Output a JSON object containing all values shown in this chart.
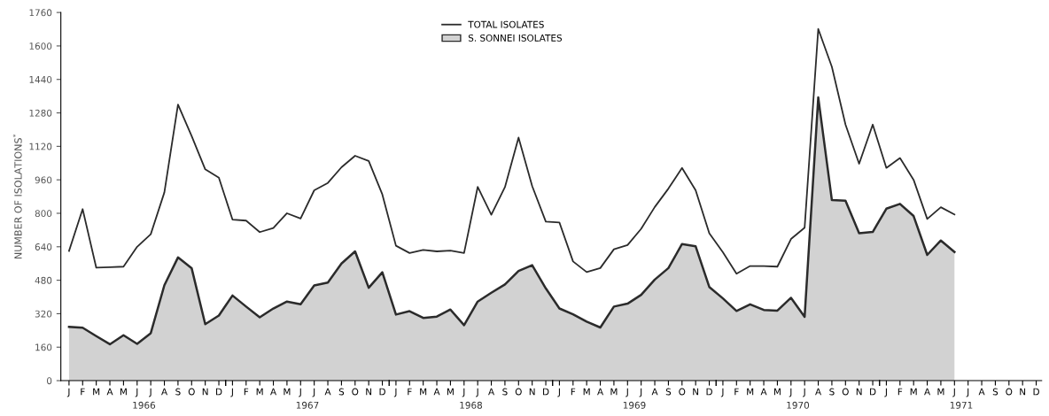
{
  "chart_data": {
    "type": "line",
    "ylabel": "NUMBER OF ISOLATIONS$^{*}$",
    "categories": [
      "J",
      "F",
      "M",
      "A",
      "M",
      "J",
      "J",
      "A",
      "S",
      "O",
      "N",
      "D",
      "J",
      "F",
      "M",
      "A",
      "M",
      "J",
      "J",
      "A",
      "S",
      "O",
      "N",
      "D",
      "J",
      "F",
      "M",
      "A",
      "M",
      "J",
      "J",
      "A",
      "S",
      "O",
      "N",
      "D",
      "J",
      "F",
      "M",
      "A",
      "M",
      "J",
      "J",
      "A",
      "S",
      "O",
      "N",
      "D",
      "J",
      "F",
      "M",
      "A",
      "M",
      "J",
      "J",
      "A",
      "S",
      "O",
      "N",
      "D",
      "J",
      "F",
      "M",
      "A",
      "M",
      "J",
      "J",
      "A",
      "S",
      "O",
      "N",
      "D"
    ],
    "annotations": [
      "1966",
      "1967",
      "1968",
      "1969",
      "1970",
      "1971"
    ],
    "series": [
      {
        "name": "S. SONNEI ISOLATES",
        "type": "area",
        "color": "#d2d2d2",
        "values": [
          257,
          253,
          213,
          174,
          217,
          176,
          227,
          456,
          589,
          538,
          270,
          311,
          407,
          354,
          303,
          345,
          378,
          365,
          455,
          469,
          560,
          618,
          444,
          518,
          316,
          332,
          300,
          306,
          340,
          265,
          378,
          420,
          460,
          524,
          552,
          441,
          345,
          317,
          282,
          254,
          354,
          368,
          410,
          483,
          538,
          653,
          642,
          448,
          393,
          333,
          365,
          338,
          335,
          396,
          305,
          1354,
          863,
          860,
          705,
          711,
          822,
          845,
          787,
          601,
          670,
          615,
          null,
          null,
          null,
          null,
          null,
          null
        ]
      },
      {
        "name": "TOTAL ISOLATES",
        "color": "#2b2b2b",
        "values": [
          620,
          820,
          540,
          542,
          545,
          640,
          700,
          900,
          1320,
          1170,
          1010,
          970,
          770,
          765,
          710,
          730,
          800,
          775,
          910,
          945,
          1020,
          1075,
          1050,
          890,
          645,
          610,
          625,
          618,
          622,
          610,
          926,
          793,
          925,
          1162,
          930,
          760,
          756,
          570,
          519,
          538,
          628,
          648,
          726,
          830,
          918,
          1017,
          910,
          705,
          614,
          511,
          548,
          548,
          545,
          677,
          731,
          1681,
          1500,
          1224,
          1037,
          1224,
          1017,
          1064,
          960,
          773,
          829,
          794,
          null,
          null,
          null,
          null,
          null,
          null
        ]
      }
    ],
    "ylim": [
      0,
      1760
    ],
    "yticks": [
      0,
      160,
      320,
      480,
      640,
      800,
      960,
      1120,
      1280,
      1440,
      1600,
      1760
    ],
    "legend": "top center",
    "grid": false
  }
}
